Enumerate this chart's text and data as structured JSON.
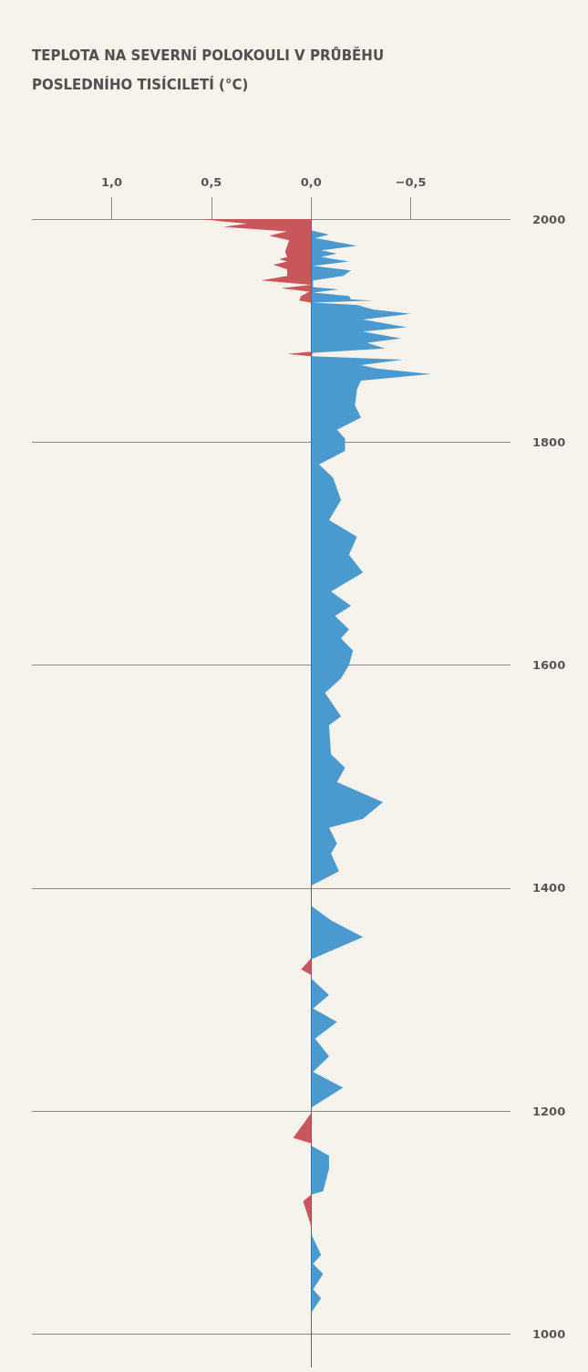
{
  "chart_data": {
    "type": "area",
    "title": "TEPLOTA NA SEVERNÍ POLOKOULI V PRŮBĚHU POSLEDNÍHO TISÍCILETÍ (°C)",
    "orientation": "horizontal",
    "series": [
      {
        "color": "#c8565a",
        "x": [
          2000,
          1998,
          1996,
          1993,
          1989,
          1985,
          1981,
          1976,
          1971,
          1966,
          1964,
          1962,
          1959,
          1955,
          1949,
          1945,
          1941,
          1938,
          1935,
          1931,
          1927,
          1925,
          1881,
          1879,
          1877,
          1337,
          1327,
          1322,
          1198,
          1176,
          1171,
          1125,
          1119,
          1097
        ],
        "values": [
          0.54,
          0.45,
          0.32,
          0.44,
          0.12,
          0.21,
          0.11,
          0.12,
          0.13,
          0.12,
          0.16,
          0.12,
          0.19,
          0.12,
          0.12,
          0.25,
          0,
          0.15,
          0.01,
          0.05,
          0.06,
          0,
          0,
          0.12,
          0,
          0,
          0.05,
          0,
          0,
          0.09,
          0,
          0,
          0.04,
          0
        ]
      },
      {
        "color": "#4a9acf",
        "x": [
          1990,
          1986,
          1983,
          1976,
          1972,
          1969,
          1966,
          1962,
          1958,
          1954,
          1949,
          1945,
          1939,
          1937,
          1934,
          1931,
          1928,
          1927,
          1925,
          1923,
          1919,
          1915,
          1910,
          1903,
          1899,
          1893,
          1889,
          1884,
          1880,
          1877,
          1874,
          1869,
          1866,
          1861,
          1855,
          1847,
          1833,
          1822,
          1811,
          1803,
          1792,
          1780,
          1768,
          1748,
          1730,
          1715,
          1699,
          1683,
          1666,
          1653,
          1644,
          1632,
          1624,
          1613,
          1600,
          1588,
          1575,
          1554,
          1546,
          1520,
          1508,
          1495,
          1477,
          1462,
          1454,
          1440,
          1431,
          1415,
          1402,
          1384,
          1371,
          1356,
          1336,
          1319,
          1304,
          1292,
          1280,
          1265,
          1249,
          1235,
          1221,
          1203,
          1169,
          1160,
          1148,
          1128,
          1125,
          1090,
          1071,
          1063,
          1054,
          1040,
          1032,
          1019
        ],
        "values": [
          0,
          -0.09,
          -0.02,
          -0.23,
          -0.05,
          -0.13,
          -0.05,
          -0.19,
          -0.01,
          -0.2,
          -0.16,
          -0.01,
          -0.01,
          -0.14,
          -0.01,
          -0.19,
          -0.2,
          -0.31,
          -0.01,
          -0.23,
          -0.31,
          -0.5,
          -0.26,
          -0.48,
          -0.26,
          -0.45,
          -0.28,
          -0.37,
          -0.01,
          0,
          -0.46,
          -0.25,
          -0.33,
          -0.6,
          -0.25,
          -0.23,
          -0.22,
          -0.25,
          -0.13,
          -0.17,
          -0.17,
          -0.04,
          -0.11,
          -0.15,
          -0.09,
          -0.23,
          -0.19,
          -0.26,
          -0.1,
          -0.2,
          -0.12,
          -0.19,
          -0.15,
          -0.21,
          -0.19,
          -0.15,
          -0.07,
          -0.15,
          -0.09,
          -0.1,
          -0.17,
          -0.13,
          -0.36,
          -0.26,
          -0.09,
          -0.13,
          -0.1,
          -0.14,
          0,
          0,
          -0.1,
          -0.26,
          0,
          0,
          -0.09,
          -0.01,
          -0.13,
          -0.02,
          -0.09,
          -0.01,
          -0.16,
          0,
          0,
          -0.09,
          -0.09,
          -0.06,
          0,
          0,
          -0.05,
          -0.01,
          -0.06,
          -0.01,
          -0.05,
          0
        ]
      }
    ],
    "xlim": [
      1.4,
      -1.0
    ],
    "xticks": [
      {
        "value": 1.0,
        "label": "1,0"
      },
      {
        "value": 0.5,
        "label": "0,5"
      },
      {
        "value": 0,
        "label": "0,0"
      },
      {
        "value": -0.5,
        "label": "−0,5"
      }
    ],
    "ylim": [
      970,
      2000
    ],
    "yticks": [
      1000,
      1200,
      1400,
      1600,
      1800,
      2000
    ],
    "grid": "y",
    "ref_lines": [
      {
        "axis": "x",
        "value": 0
      }
    ]
  }
}
